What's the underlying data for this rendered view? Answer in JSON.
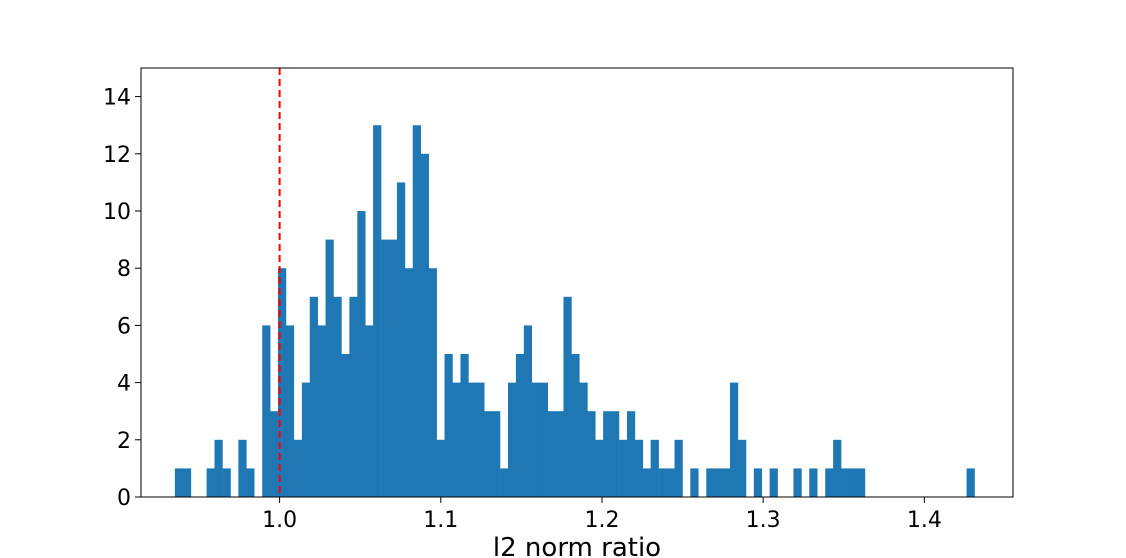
{
  "chart_data": {
    "type": "bar",
    "subtype": "histogram",
    "title": "",
    "xlabel": "l2 norm ratio",
    "ylabel": "",
    "xlim": [
      0.914,
      1.455
    ],
    "ylim": [
      0,
      15
    ],
    "xticks": [
      1.0,
      1.1,
      1.2,
      1.3,
      1.4
    ],
    "xtick_labels": [
      "1.0",
      "1.1",
      "1.2",
      "1.3",
      "1.4"
    ],
    "yticks": [
      0,
      2,
      4,
      6,
      8,
      10,
      12,
      14
    ],
    "ytick_labels": [
      "0",
      "2",
      "4",
      "6",
      "8",
      "10",
      "12",
      "14"
    ],
    "grid": false,
    "legend": "none",
    "bar_color": "#1f77b4",
    "reference_line": {
      "x": 1.0,
      "color": "#ff0000",
      "style": "dashed"
    },
    "bin_width": 0.00492,
    "bins": [
      {
        "x0": 0.935,
        "count": 1
      },
      {
        "x0": 0.94,
        "count": 1
      },
      {
        "x0": 0.9449,
        "count": 0
      },
      {
        "x0": 0.9498,
        "count": 0
      },
      {
        "x0": 0.9547,
        "count": 1
      },
      {
        "x0": 0.9596,
        "count": 2
      },
      {
        "x0": 0.9646,
        "count": 1
      },
      {
        "x0": 0.9695,
        "count": 0
      },
      {
        "x0": 0.9744,
        "count": 2
      },
      {
        "x0": 0.9793,
        "count": 1
      },
      {
        "x0": 0.9842,
        "count": 0
      },
      {
        "x0": 0.9892,
        "count": 6
      },
      {
        "x0": 0.9941,
        "count": 3
      },
      {
        "x0": 0.999,
        "count": 8
      },
      {
        "x0": 1.0039,
        "count": 6
      },
      {
        "x0": 1.0088,
        "count": 2
      },
      {
        "x0": 1.0138,
        "count": 4
      },
      {
        "x0": 1.0187,
        "count": 7
      },
      {
        "x0": 1.0236,
        "count": 6
      },
      {
        "x0": 1.0285,
        "count": 9
      },
      {
        "x0": 1.0334,
        "count": 7
      },
      {
        "x0": 1.0384,
        "count": 5
      },
      {
        "x0": 1.0433,
        "count": 7
      },
      {
        "x0": 1.0482,
        "count": 10
      },
      {
        "x0": 1.0531,
        "count": 6
      },
      {
        "x0": 1.058,
        "count": 13
      },
      {
        "x0": 1.063,
        "count": 9
      },
      {
        "x0": 1.0679,
        "count": 9
      },
      {
        "x0": 1.0728,
        "count": 11
      },
      {
        "x0": 1.0777,
        "count": 8
      },
      {
        "x0": 1.0826,
        "count": 13
      },
      {
        "x0": 1.0876,
        "count": 12
      },
      {
        "x0": 1.0925,
        "count": 8
      },
      {
        "x0": 1.0974,
        "count": 2
      },
      {
        "x0": 1.1023,
        "count": 5
      },
      {
        "x0": 1.1072,
        "count": 4
      },
      {
        "x0": 1.1122,
        "count": 5
      },
      {
        "x0": 1.1171,
        "count": 4
      },
      {
        "x0": 1.122,
        "count": 4
      },
      {
        "x0": 1.1269,
        "count": 3
      },
      {
        "x0": 1.1318,
        "count": 3
      },
      {
        "x0": 1.1368,
        "count": 1
      },
      {
        "x0": 1.1417,
        "count": 4
      },
      {
        "x0": 1.1466,
        "count": 5
      },
      {
        "x0": 1.1515,
        "count": 6
      },
      {
        "x0": 1.1564,
        "count": 4
      },
      {
        "x0": 1.1614,
        "count": 4
      },
      {
        "x0": 1.1663,
        "count": 3
      },
      {
        "x0": 1.1712,
        "count": 3
      },
      {
        "x0": 1.1761,
        "count": 7
      },
      {
        "x0": 1.181,
        "count": 5
      },
      {
        "x0": 1.186,
        "count": 4
      },
      {
        "x0": 1.1909,
        "count": 3
      },
      {
        "x0": 1.1958,
        "count": 2
      },
      {
        "x0": 1.2007,
        "count": 3
      },
      {
        "x0": 1.2056,
        "count": 3
      },
      {
        "x0": 1.2106,
        "count": 2
      },
      {
        "x0": 1.2155,
        "count": 3
      },
      {
        "x0": 1.2204,
        "count": 2
      },
      {
        "x0": 1.2253,
        "count": 1
      },
      {
        "x0": 1.2302,
        "count": 2
      },
      {
        "x0": 1.2352,
        "count": 1
      },
      {
        "x0": 1.2401,
        "count": 1
      },
      {
        "x0": 1.245,
        "count": 2
      },
      {
        "x0": 1.2499,
        "count": 0
      },
      {
        "x0": 1.2548,
        "count": 1
      },
      {
        "x0": 1.2598,
        "count": 0
      },
      {
        "x0": 1.2647,
        "count": 1
      },
      {
        "x0": 1.2696,
        "count": 1
      },
      {
        "x0": 1.2745,
        "count": 1
      },
      {
        "x0": 1.2794,
        "count": 4
      },
      {
        "x0": 1.2844,
        "count": 2
      },
      {
        "x0": 1.2893,
        "count": 0
      },
      {
        "x0": 1.2942,
        "count": 1
      },
      {
        "x0": 1.2991,
        "count": 0
      },
      {
        "x0": 1.304,
        "count": 1
      },
      {
        "x0": 1.309,
        "count": 0
      },
      {
        "x0": 1.3139,
        "count": 0
      },
      {
        "x0": 1.3188,
        "count": 1
      },
      {
        "x0": 1.3237,
        "count": 0
      },
      {
        "x0": 1.3286,
        "count": 1
      },
      {
        "x0": 1.3336,
        "count": 0
      },
      {
        "x0": 1.3385,
        "count": 1
      },
      {
        "x0": 1.3434,
        "count": 2
      },
      {
        "x0": 1.3483,
        "count": 1
      },
      {
        "x0": 1.3532,
        "count": 1
      },
      {
        "x0": 1.3582,
        "count": 1
      },
      {
        "x0": 1.4262,
        "count": 1
      }
    ]
  }
}
